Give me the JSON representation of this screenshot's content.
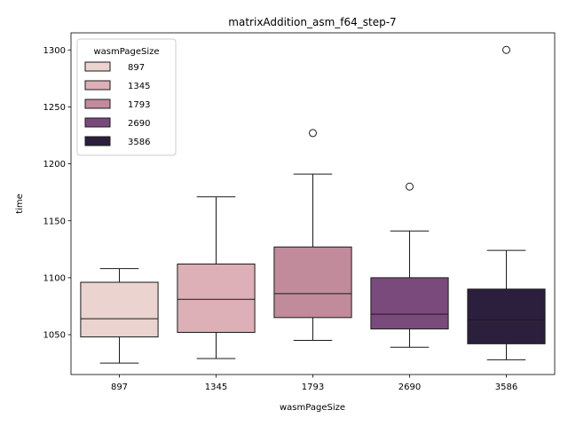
{
  "chart_data": {
    "type": "box",
    "title": "matrixAddition_asm_f64_step-7",
    "xlabel": "wasmPageSize",
    "ylabel": "time",
    "ylim": [
      1015,
      1315
    ],
    "yticks": [
      1050,
      1100,
      1150,
      1200,
      1250,
      1300
    ],
    "grid": false,
    "legend": {
      "title": "wasmPageSize",
      "placement": "top-left",
      "entries": [
        "897",
        "1345",
        "1793",
        "2690",
        "3586"
      ]
    },
    "categories": [
      "897",
      "1345",
      "1793",
      "2690",
      "3586"
    ],
    "colors": [
      "#ebd3cf",
      "#dcb0b6",
      "#c18b9c",
      "#7a4a7c",
      "#2c1f3d"
    ],
    "boxes": [
      {
        "category": "897",
        "whisker_low": 1025,
        "q1": 1048,
        "median": 1064,
        "q3": 1096,
        "whisker_high": 1108,
        "outliers": []
      },
      {
        "category": "1345",
        "whisker_low": 1029,
        "q1": 1052,
        "median": 1081,
        "q3": 1112,
        "whisker_high": 1171,
        "outliers": []
      },
      {
        "category": "1793",
        "whisker_low": 1045,
        "q1": 1065,
        "median": 1086,
        "q3": 1127,
        "whisker_high": 1191,
        "outliers": [
          1227
        ]
      },
      {
        "category": "2690",
        "whisker_low": 1039,
        "q1": 1055,
        "median": 1068,
        "q3": 1100,
        "whisker_high": 1141,
        "outliers": [
          1180
        ]
      },
      {
        "category": "3586",
        "whisker_low": 1028,
        "q1": 1042,
        "median": 1063,
        "q3": 1090,
        "whisker_high": 1124,
        "outliers": [
          1300
        ]
      }
    ]
  }
}
